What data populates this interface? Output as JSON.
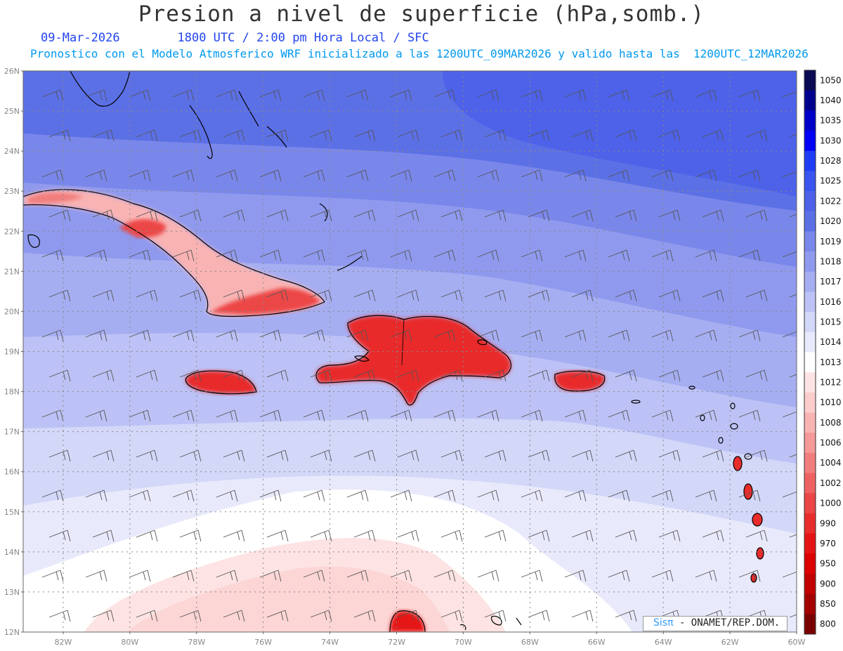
{
  "header": {
    "title": "Presion a nivel de superficie (hPa,somb.)",
    "date": "09-Mar-2026",
    "time_info": "1800 UTC / 2:00 pm Hora Local / SFC",
    "model_info": "Pronostico con el Modelo Atmosferico WRF inicializado a las 1200UTC_09MAR2026 y valido hasta las  1200UTC_12MAR2026"
  },
  "credit": {
    "logo": "Sisπ",
    "text": "- ONAMET/REP.DOM."
  },
  "map": {
    "lat_labels": [
      "26N",
      "25N",
      "24N",
      "23N",
      "22N",
      "21N",
      "20N",
      "19N",
      "18N",
      "17N",
      "16N",
      "15N",
      "14N",
      "13N",
      "12N"
    ],
    "lon_labels": [
      "82W",
      "80W",
      "78W",
      "76W",
      "74W",
      "72W",
      "70W",
      "68W",
      "66W",
      "64W",
      "62W",
      "60W"
    ],
    "lat_range": [
      12,
      26
    ],
    "lon_range": [
      -83.2,
      -60
    ]
  },
  "colorbar": {
    "levels": [
      "1050",
      "1040",
      "1035",
      "1030",
      "1028",
      "1025",
      "1022",
      "1020",
      "1019",
      "1018",
      "1017",
      "1016",
      "1015",
      "1014",
      "1013",
      "1012",
      "1010",
      "1008",
      "1006",
      "1004",
      "1002",
      "1000",
      "990",
      "970",
      "950",
      "900",
      "850",
      "800"
    ],
    "colors": [
      "#0a0a55",
      "#00008e",
      "#0000c8",
      "#0000f5",
      "#1f3cf5",
      "#3a55ef",
      "#4d62e8",
      "#5c70e6",
      "#7a87ea",
      "#8f9aee",
      "#a6aef2",
      "#bcc2f5",
      "#d3d7f8",
      "#e8eafb",
      "#ffffff",
      "#fde3e3",
      "#fbcccc",
      "#f9b3b3",
      "#f59999",
      "#f27d7d",
      "#ef6262",
      "#ec4646",
      "#e82c2c",
      "#e51414",
      "#dc0000",
      "#c20000",
      "#a30000",
      "#7a0000"
    ]
  }
}
